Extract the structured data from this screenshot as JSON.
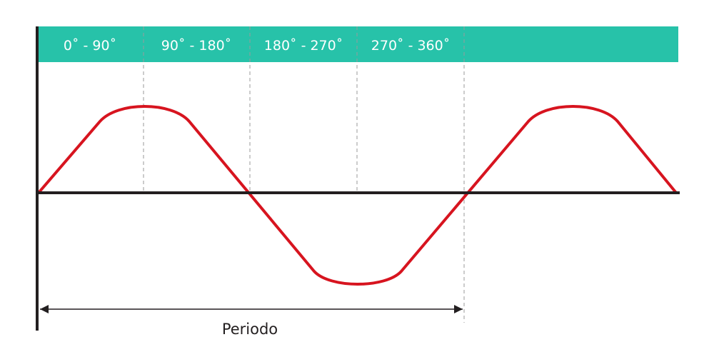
{
  "header_band": {
    "color": "#27c2a9",
    "labels": [
      "0˚ - 90˚",
      "90˚ - 180˚",
      "180˚ - 270˚",
      "270˚ - 360˚"
    ]
  },
  "wave": {
    "color": "#d7141f",
    "shape": "trapezoid-wave with rounded crests"
  },
  "axes": {
    "color": "#231f20"
  },
  "guides": {
    "color": "#9a9a9a",
    "style": "dashed"
  },
  "period": {
    "label": "Periodo"
  }
}
